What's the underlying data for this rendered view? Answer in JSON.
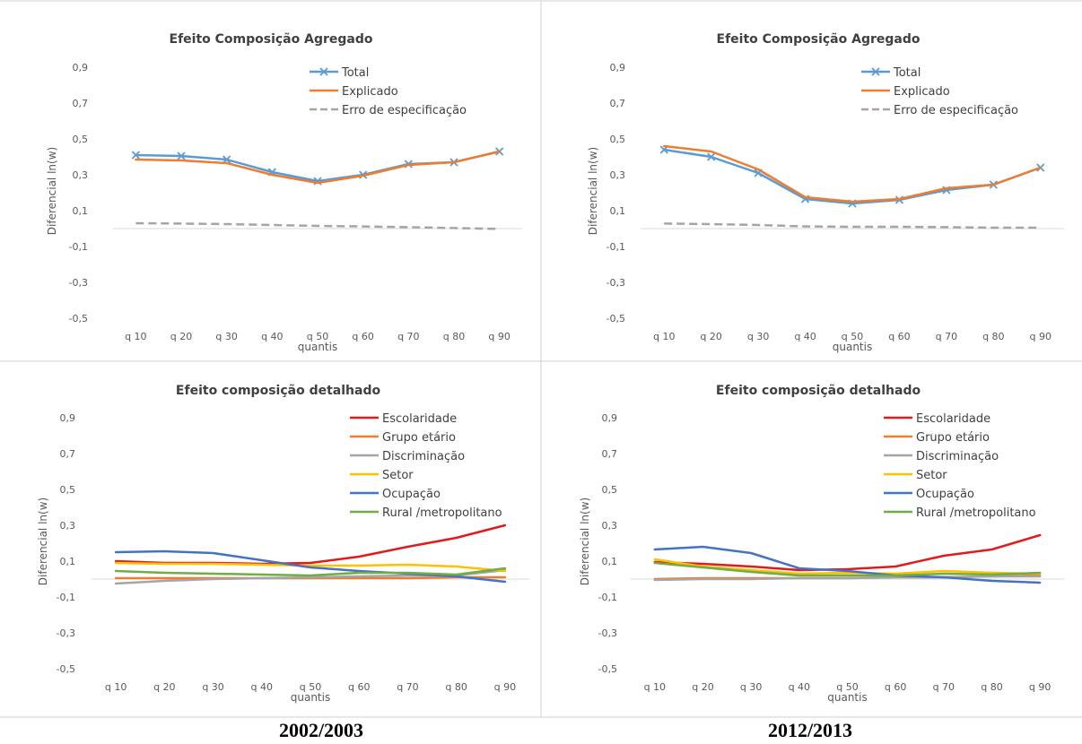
{
  "colors": {
    "total": "#5b9bd5",
    "explicado": "#ed7d31",
    "erro": "#a5a5a5",
    "escolaridade": "#e31a1c",
    "grupo": "#ed7d31",
    "discriminacao": "#a5a5a5",
    "setor": "#ffc000",
    "ocupacao": "#4472c4",
    "rural": "#70ad47",
    "border": "#d0d0d0",
    "zero_line": "#d9d9d9"
  },
  "periods": [
    "2002/2003",
    "2012/2013"
  ],
  "chart_data": [
    {
      "type": "line",
      "title": "Efeito Composição  Agregado",
      "xlabel": "quantis",
      "ylabel": "Diferencial ln(w)",
      "ylim": [
        -0.5,
        0.9
      ],
      "yticks": [
        "0,9",
        "0,7",
        "0,5",
        "0,3",
        "0,1",
        "-0,1",
        "-0,3",
        "-0,5"
      ],
      "categories": [
        "q 10",
        "q 20",
        "q 30",
        "q 40",
        "q 50",
        "q 60",
        "q 70",
        "q 80",
        "q 90"
      ],
      "legend_position": "top-right",
      "series": [
        {
          "name": "Total",
          "color_key": "total",
          "marker": "x",
          "values": [
            0.41,
            0.405,
            0.385,
            0.315,
            0.265,
            0.3,
            0.36,
            0.37,
            0.43
          ]
        },
        {
          "name": "Explicado",
          "color_key": "explicado",
          "values": [
            0.385,
            0.38,
            0.365,
            0.3,
            0.255,
            0.295,
            0.355,
            0.37,
            0.43
          ]
        },
        {
          "name": "Erro de especificação",
          "color_key": "erro",
          "dashed": true,
          "values": [
            0.03,
            0.028,
            0.025,
            0.02,
            0.015,
            0.012,
            0.008,
            0.003,
            -0.002
          ]
        }
      ]
    },
    {
      "type": "line",
      "title": "Efeito Composição  Agregado",
      "xlabel": "quantis",
      "ylabel": "Diferencial ln(w)",
      "ylim": [
        -0.5,
        0.9
      ],
      "yticks": [
        "0,9",
        "0,7",
        "0,5",
        "0,3",
        "0,1",
        "-0,1",
        "-0,3",
        "-0,5"
      ],
      "categories": [
        "q 10",
        "q 20",
        "q 30",
        "q 40",
        "q 50",
        "q 60",
        "q 70",
        "q 80",
        "q 90"
      ],
      "legend_position": "top-right",
      "series": [
        {
          "name": "Total",
          "color_key": "total",
          "marker": "x",
          "values": [
            0.44,
            0.4,
            0.31,
            0.165,
            0.14,
            0.16,
            0.215,
            0.245,
            0.34
          ]
        },
        {
          "name": "Explicado",
          "color_key": "explicado",
          "values": [
            0.46,
            0.43,
            0.33,
            0.175,
            0.15,
            0.165,
            0.225,
            0.245,
            0.34
          ]
        },
        {
          "name": "Erro de especificação",
          "color_key": "erro",
          "dashed": true,
          "values": [
            0.028,
            0.025,
            0.02,
            0.012,
            0.01,
            0.01,
            0.008,
            0.005,
            0.005
          ]
        }
      ]
    },
    {
      "type": "line",
      "title": "Efeito composição  detalhado",
      "xlabel": "quantis",
      "ylabel": "Diferencial ln(w)",
      "ylim": [
        -0.5,
        0.9
      ],
      "yticks": [
        "0,9",
        "0,7",
        "0,5",
        "0,3",
        "0,1",
        "-0,1",
        "-0,3",
        "-0,5"
      ],
      "categories": [
        "q 10",
        "q 20",
        "q 30",
        "q 40",
        "q 50",
        "q 60",
        "q 70",
        "q 80",
        "q 90"
      ],
      "legend_position": "top-right",
      "series": [
        {
          "name": "Escolaridade",
          "color_key": "escolaridade",
          "values": [
            0.1,
            0.09,
            0.09,
            0.085,
            0.09,
            0.125,
            0.18,
            0.23,
            0.3
          ]
        },
        {
          "name": "Grupo etário",
          "color_key": "grupo",
          "values": [
            0.005,
            0.005,
            0.005,
            0.005,
            0.005,
            0.005,
            0.005,
            0.01,
            0.01
          ]
        },
        {
          "name": "Discriminação",
          "color_key": "discriminacao",
          "values": [
            -0.025,
            -0.01,
            0.0,
            0.005,
            0.01,
            0.015,
            0.02,
            0.02,
            0.05
          ]
        },
        {
          "name": "Setor",
          "color_key": "setor",
          "values": [
            0.09,
            0.085,
            0.085,
            0.08,
            0.075,
            0.075,
            0.08,
            0.07,
            0.045
          ]
        },
        {
          "name": "Ocupação",
          "color_key": "ocupacao",
          "values": [
            0.15,
            0.155,
            0.145,
            0.105,
            0.065,
            0.045,
            0.03,
            0.015,
            -0.015
          ]
        },
        {
          "name": "Rural /metropolitano",
          "color_key": "rural",
          "values": [
            0.045,
            0.035,
            0.03,
            0.025,
            0.02,
            0.035,
            0.035,
            0.025,
            0.06
          ]
        }
      ]
    },
    {
      "type": "line",
      "title": "Efeito composição  detalhado",
      "xlabel": "quantis",
      "ylabel": "Diferencial ln(w)",
      "ylim": [
        -0.5,
        0.9
      ],
      "yticks": [
        "0,9",
        "0,7",
        "0,5",
        "0,3",
        "0,1",
        "-0,1",
        "-0,3",
        "-0,5"
      ],
      "categories": [
        "q 10",
        "q 20",
        "q 30",
        "q 40",
        "q 50",
        "q 60",
        "q 70",
        "q 80",
        "q 90"
      ],
      "legend_position": "top-right",
      "series": [
        {
          "name": "Escolaridade",
          "color_key": "escolaridade",
          "values": [
            0.095,
            0.085,
            0.07,
            0.05,
            0.055,
            0.07,
            0.13,
            0.165,
            0.245
          ]
        },
        {
          "name": "Grupo etário",
          "color_key": "grupo",
          "values": [
            0.0,
            0.005,
            0.005,
            0.005,
            0.005,
            0.01,
            0.01,
            0.015,
            0.02
          ]
        },
        {
          "name": "Discriminação",
          "color_key": "discriminacao",
          "values": [
            -0.005,
            0.0,
            0.0,
            0.005,
            0.005,
            0.01,
            0.01,
            0.015,
            0.015
          ]
        },
        {
          "name": "Setor",
          "color_key": "setor",
          "values": [
            0.11,
            0.07,
            0.05,
            0.03,
            0.035,
            0.03,
            0.045,
            0.035,
            0.03
          ]
        },
        {
          "name": "Ocupação",
          "color_key": "ocupacao",
          "values": [
            0.165,
            0.18,
            0.145,
            0.06,
            0.045,
            0.02,
            0.01,
            -0.01,
            -0.02
          ]
        },
        {
          "name": "Rural /metropolitano",
          "color_key": "rural",
          "values": [
            0.09,
            0.065,
            0.04,
            0.02,
            0.02,
            0.02,
            0.03,
            0.025,
            0.035
          ]
        }
      ]
    }
  ]
}
